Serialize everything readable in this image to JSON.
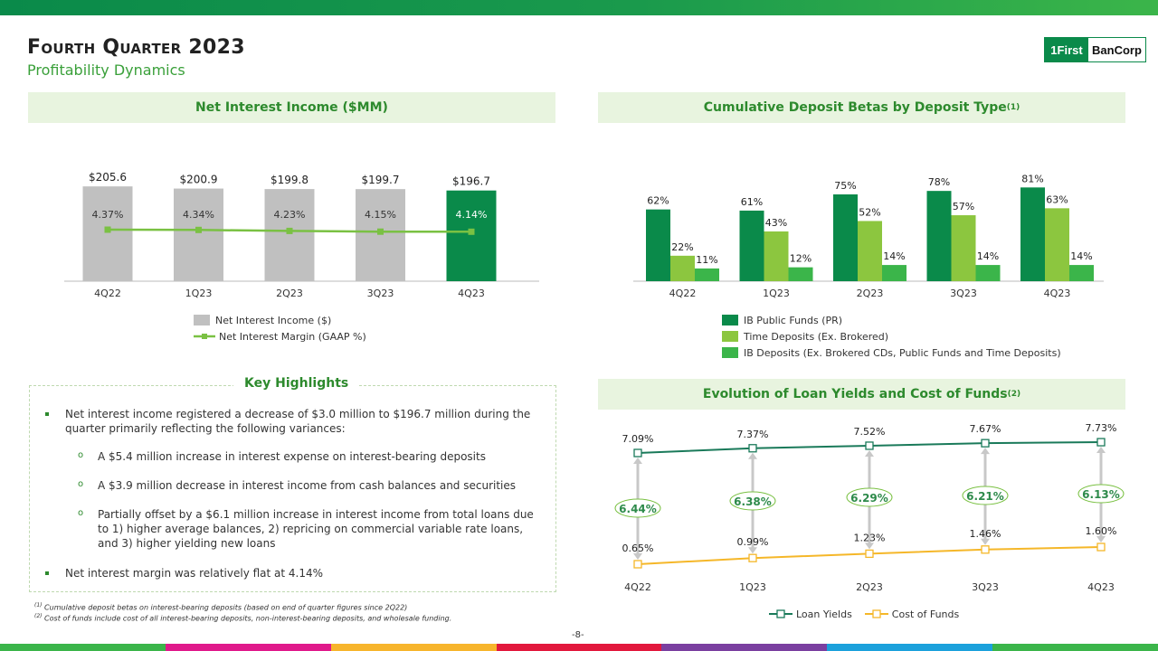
{
  "header": {
    "title": "Fourth Quarter 2023",
    "subtitle": "Profitability Dynamics",
    "logo_mark": "1First",
    "logo_text": "BanCorp"
  },
  "colors": {
    "dark_green": "#0a8a4a",
    "mid_green": "#8cc63f",
    "light_green": "#3bb54a",
    "gray_bar": "#c0c0c0",
    "nim_line": "#7ac143",
    "loan_line": "#1a7a5a",
    "cost_line": "#f5b729"
  },
  "nii_panel": {
    "heading": "Net Interest Income ($MM)",
    "legend_bar": "Net Interest Income ($)",
    "legend_line": "Net Interest Margin (GAAP %)"
  },
  "betas_panel": {
    "heading": "Cumulative Deposit Betas by Deposit Type",
    "heading_sup": "(1)"
  },
  "yields_panel": {
    "heading": "Evolution of Loan Yields and Cost of Funds",
    "heading_sup": "(2)"
  },
  "chart_data": [
    {
      "type": "bar",
      "title": "Net Interest Income ($MM)",
      "categories": [
        "4Q22",
        "1Q23",
        "2Q23",
        "3Q23",
        "4Q23"
      ],
      "series": [
        {
          "name": "Net Interest Income ($)",
          "values": [
            205.6,
            200.9,
            199.8,
            199.7,
            196.7
          ],
          "labels": [
            "$205.6",
            "$200.9",
            "$199.8",
            "$199.7",
            "$196.7"
          ]
        },
        {
          "name": "Net Interest Margin (GAAP %)",
          "chart": "line",
          "values": [
            4.37,
            4.34,
            4.23,
            4.15,
            4.14
          ],
          "labels": [
            "4.37%",
            "4.34%",
            "4.23%",
            "4.15%",
            "4.14%"
          ]
        }
      ]
    },
    {
      "type": "bar",
      "title": "Cumulative Deposit Betas by Deposit Type",
      "categories": [
        "4Q22",
        "1Q23",
        "2Q23",
        "3Q23",
        "4Q23"
      ],
      "unit": "%",
      "series": [
        {
          "name": "IB Public Funds (PR)",
          "values": [
            62,
            61,
            75,
            78,
            81
          ]
        },
        {
          "name": "Time Deposits (Ex. Brokered)",
          "values": [
            22,
            43,
            52,
            57,
            63
          ]
        },
        {
          "name": "IB Deposits (Ex. Brokered CDs, Public Funds and Time Deposits)",
          "values": [
            11,
            12,
            14,
            14,
            14
          ]
        }
      ]
    },
    {
      "type": "line",
      "title": "Evolution of Loan Yields and Cost of Funds",
      "categories": [
        "4Q22",
        "1Q23",
        "2Q23",
        "3Q23",
        "4Q23"
      ],
      "series": [
        {
          "name": "Loan Yields",
          "values": [
            7.09,
            7.37,
            7.52,
            7.67,
            7.73
          ],
          "labels": [
            "7.09%",
            "7.37%",
            "7.52%",
            "7.67%",
            "7.73%"
          ]
        },
        {
          "name": "Cost of Funds",
          "values": [
            0.65,
            0.99,
            1.23,
            1.46,
            1.6
          ],
          "labels": [
            "0.65%",
            "0.99%",
            "1.23%",
            "1.46%",
            "1.60%"
          ]
        }
      ],
      "spreads": [
        "6.44%",
        "6.38%",
        "6.29%",
        "6.21%",
        "6.13%"
      ]
    }
  ],
  "highlights": {
    "title": "Key Highlights",
    "bullet1_line1": "Net interest income registered a decrease of $3.0 million to $196.7 million during the",
    "bullet1_line2": "quarter primarily reflecting the following variances:",
    "sub1": "A $5.4 million increase in interest expense on interest-bearing deposits",
    "sub2": "A $3.9 million decrease in interest income from cash balances and securities",
    "sub3_line1": "Partially offset by a $6.1 million increase in interest income from total loans due",
    "sub3_line2": "to 1) higher average balances, 2) repricing on commercial variable rate loans,",
    "sub3_line3": "and 3) higher yielding new loans",
    "bullet2": "Net interest margin was relatively flat at 4.14%"
  },
  "footnotes": {
    "f1_mark": "(1)",
    "f1": "Cumulative deposit betas on interest-bearing deposits (based on end of quarter figures since 2Q22)",
    "f2_mark": "(2)",
    "f2": "Cost of funds include cost of all interest-bearing deposits, non-interest-bearing deposits, and wholesale funding."
  },
  "page_number": "-8-"
}
